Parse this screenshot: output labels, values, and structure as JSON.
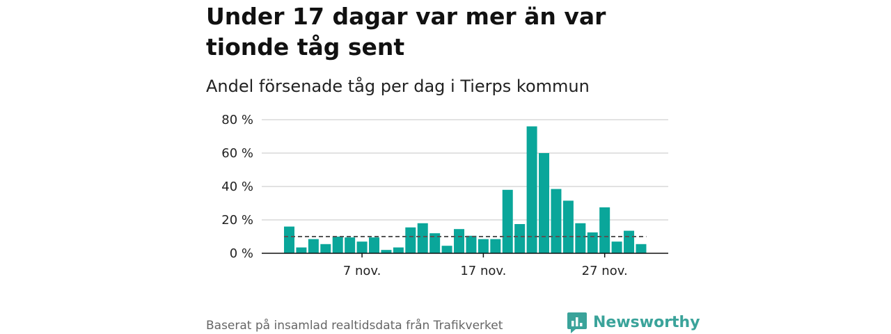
{
  "title": "Under 17 dagar var mer än var tionde tåg sent",
  "subtitle": "Andel försenade tåg per dag i Tierps kommun",
  "source": "Baserat på insamlad realtidsdata från Trafikverket",
  "logo": {
    "name": "Newsworthy",
    "icon": "newsworthy-logo-icon",
    "color": "#3aa39a"
  },
  "colors": {
    "bar": "#0aa69a",
    "reference_line": "#555555",
    "grid": "#d9d9d9"
  },
  "chart_data": {
    "type": "bar",
    "x": [
      "1 nov.",
      "2 nov.",
      "3 nov.",
      "4 nov.",
      "5 nov.",
      "6 nov.",
      "7 nov.",
      "8 nov.",
      "9 nov.",
      "10 nov.",
      "11 nov.",
      "12 nov.",
      "13 nov.",
      "14 nov.",
      "15 nov.",
      "16 nov.",
      "17 nov.",
      "18 nov.",
      "19 nov.",
      "20 nov.",
      "21 nov.",
      "22 nov.",
      "23 nov.",
      "24 nov.",
      "25 nov.",
      "26 nov.",
      "27 nov.",
      "28 nov.",
      "29 nov.",
      "30 nov."
    ],
    "values": [
      16,
      3.5,
      8.5,
      5.5,
      10,
      9.5,
      7,
      9.5,
      2,
      3.5,
      15.5,
      18,
      12,
      4.5,
      14.5,
      10.5,
      8.5,
      8.5,
      38,
      17.5,
      76,
      60,
      38.5,
      31.5,
      18,
      12.5,
      27.5,
      7,
      13.5,
      5.5
    ],
    "reference_line": 10,
    "xticks": [
      "7 nov.",
      "17 nov.",
      "27 nov."
    ],
    "yticks": [
      "0 %",
      "20 %",
      "40 %",
      "60 %",
      "80 %"
    ],
    "ytick_values": [
      0,
      20,
      40,
      60,
      80
    ],
    "ylim": [
      0,
      80
    ],
    "grid": true,
    "legend": "none"
  }
}
